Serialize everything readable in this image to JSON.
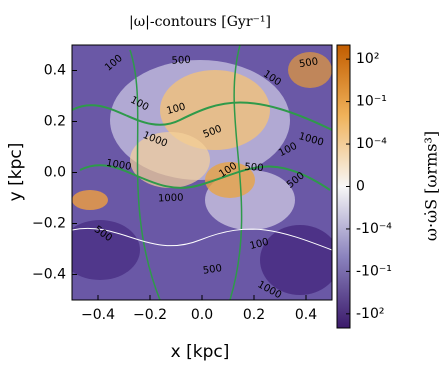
{
  "chart_data": {
    "type": "heatmap",
    "title": "|ω|-contours [Gyr⁻¹]",
    "x_label": "x [kpc]",
    "y_label": "y [kpc]",
    "xlim": [
      -0.5,
      0.5
    ],
    "ylim": [
      -0.5,
      0.5
    ],
    "xticks": [
      {
        "value": -0.4,
        "label": "−0.4"
      },
      {
        "value": -0.2,
        "label": "−0.2"
      },
      {
        "value": 0,
        "label": "0.0"
      },
      {
        "value": 0.2,
        "label": "0.2"
      },
      {
        "value": 0.4,
        "label": "0.4"
      }
    ],
    "yticks": [
      {
        "value": -0.4,
        "label": "−0.4"
      },
      {
        "value": -0.2,
        "label": "−0.2"
      },
      {
        "value": 0,
        "label": "0.0"
      },
      {
        "value": 0.2,
        "label": "0.2"
      },
      {
        "value": 0.4,
        "label": "0.4"
      }
    ],
    "contour_color": "#2e9a4a",
    "contour_labels": [
      {
        "x": -0.34,
        "y": 0.43,
        "value": 100
      },
      {
        "x": -0.08,
        "y": 0.44,
        "value": 500
      },
      {
        "x": 0.27,
        "y": 0.37,
        "value": 100
      },
      {
        "x": 0.41,
        "y": 0.43,
        "value": 500
      },
      {
        "x": -0.24,
        "y": 0.27,
        "value": 100
      },
      {
        "x": -0.1,
        "y": 0.25,
        "value": 100
      },
      {
        "x": -0.18,
        "y": 0.13,
        "value": 1000
      },
      {
        "x": 0.04,
        "y": 0.16,
        "value": 500
      },
      {
        "x": 0.42,
        "y": 0.13,
        "value": 1000
      },
      {
        "x": 0.33,
        "y": 0.09,
        "value": 100
      },
      {
        "x": -0.32,
        "y": 0.03,
        "value": 1000
      },
      {
        "x": 0.1,
        "y": 0.01,
        "value": 100
      },
      {
        "x": 0.2,
        "y": 0.02,
        "value": 500
      },
      {
        "x": 0.36,
        "y": -0.03,
        "value": 500
      },
      {
        "x": -0.12,
        "y": -0.1,
        "value": 1000
      },
      {
        "x": -0.38,
        "y": -0.24,
        "value": 500
      },
      {
        "x": 0.04,
        "y": -0.38,
        "value": 500
      },
      {
        "x": 0.26,
        "y": -0.46,
        "value": 1000
      },
      {
        "x": 0.22,
        "y": -0.28,
        "value": 100
      }
    ],
    "colorbar": {
      "label": "ω·ω̇S [ωrms³]",
      "scale": "symlog",
      "linthresh": 0.0001,
      "linscale": 3,
      "lim": [
        -1000,
        1000
      ],
      "ticks": [
        {
          "value": 100,
          "label": "10²"
        },
        {
          "value": 0.1,
          "label": "10⁻¹"
        },
        {
          "value": 0.0001,
          "label": "10⁻⁴"
        },
        0,
        {
          "value": -0.0001,
          "label": "-10⁻⁴"
        },
        {
          "value": -0.1,
          "label": "-10⁻¹"
        },
        {
          "value": -100,
          "label": "-10²"
        }
      ],
      "colors": [
        "#3b1a6b",
        "#8a82bd",
        "#f7f7f7",
        "#f0b25a",
        "#c25d00"
      ]
    }
  }
}
